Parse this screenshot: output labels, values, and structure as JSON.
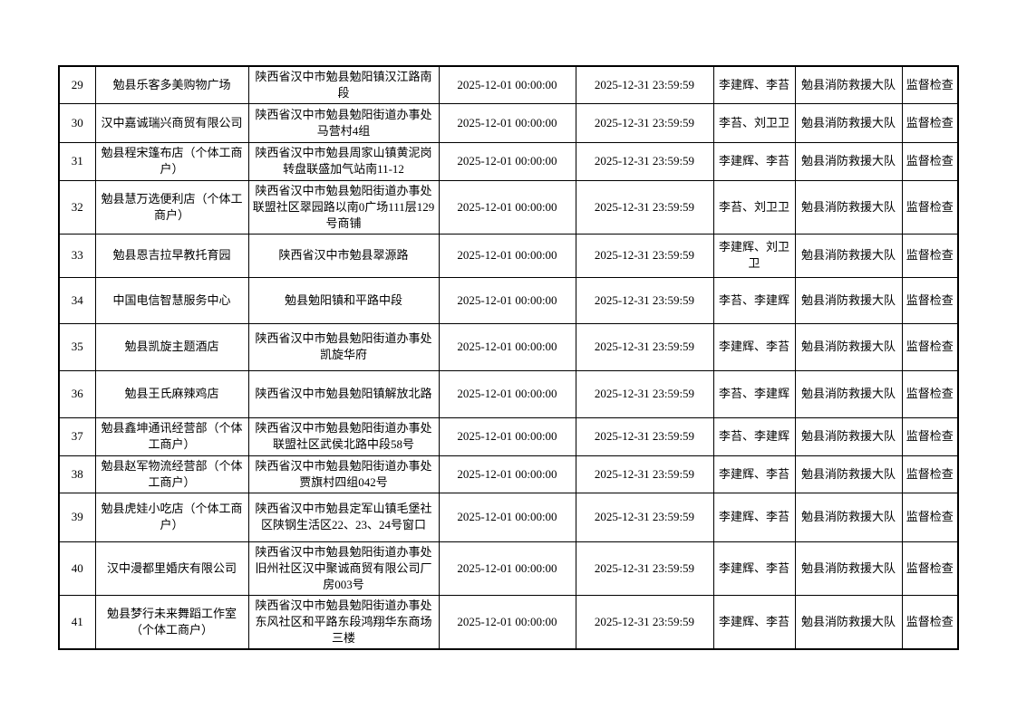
{
  "page": {
    "background_color": "#ffffff",
    "text_color": "#000000",
    "border_color": "#000000"
  },
  "table": {
    "rows": [
      {
        "no": "29",
        "name": "勉县乐客多美购物广场",
        "address": "陕西省汉中市勉县勉阳镇汉江路南段",
        "start": "2025-12-01 00:00:00",
        "end": "2025-12-31 23:59:59",
        "inspectors": "李建辉、李苔",
        "agency": "勉县消防救援大队",
        "type": "监督检查"
      },
      {
        "no": "30",
        "name": "汉中嘉诚瑞兴商贸有限公司",
        "address": "陕西省汉中市勉县勉阳街道办事处马营村4组",
        "start": "2025-12-01 00:00:00",
        "end": "2025-12-31 23:59:59",
        "inspectors": "李苔、刘卫卫",
        "agency": "勉县消防救援大队",
        "type": "监督检查"
      },
      {
        "no": "31",
        "name": "勉县程宋篷布店（个体工商户）",
        "address": "陕西省汉中市勉县周家山镇黄泥岗转盘联盛加气站南11-12",
        "start": "2025-12-01 00:00:00",
        "end": "2025-12-31 23:59:59",
        "inspectors": "李建辉、李苔",
        "agency": "勉县消防救援大队",
        "type": "监督检查"
      },
      {
        "no": "32",
        "name": "勉县慧万选便利店（个体工商户）",
        "address": "陕西省汉中市勉县勉阳街道办事处联盟社区翠园路以南0广场111层129号商铺",
        "start": "2025-12-01 00:00:00",
        "end": "2025-12-31 23:59:59",
        "inspectors": "李苔、刘卫卫",
        "agency": "勉县消防救援大队",
        "type": "监督检查"
      },
      {
        "no": "33",
        "name": "勉县恩吉拉早教托育园",
        "address": "陕西省汉中市勉县翠源路",
        "start": "2025-12-01 00:00:00",
        "end": "2025-12-31 23:59:59",
        "inspectors": "李建辉、刘卫卫",
        "agency": "勉县消防救援大队",
        "type": "监督检查"
      },
      {
        "no": "34",
        "name": "中国电信智慧服务中心",
        "address": "勉县勉阳镇和平路中段",
        "start": "2025-12-01 00:00:00",
        "end": "2025-12-31 23:59:59",
        "inspectors": "李苔、李建辉",
        "agency": "勉县消防救援大队",
        "type": "监督检查"
      },
      {
        "no": "35",
        "name": "勉县凯旋主题酒店",
        "address": "陕西省汉中市勉县勉阳街道办事处凯旋华府",
        "start": "2025-12-01 00:00:00",
        "end": "2025-12-31 23:59:59",
        "inspectors": "李建辉、李苔",
        "agency": "勉县消防救援大队",
        "type": "监督检查"
      },
      {
        "no": "36",
        "name": "勉县王氏麻辣鸡店",
        "address": "陕西省汉中市勉县勉阳镇解放北路",
        "start": "2025-12-01 00:00:00",
        "end": "2025-12-31 23:59:59",
        "inspectors": "李苔、李建辉",
        "agency": "勉县消防救援大队",
        "type": "监督检查"
      },
      {
        "no": "37",
        "name": "勉县鑫坤通讯经营部（个体工商户）",
        "address": "陕西省汉中市勉县勉阳街道办事处联盟社区武侯北路中段58号",
        "start": "2025-12-01 00:00:00",
        "end": "2025-12-31 23:59:59",
        "inspectors": "李苔、李建辉",
        "agency": "勉县消防救援大队",
        "type": "监督检查"
      },
      {
        "no": "38",
        "name": "勉县赵军物流经营部（个体工商户）",
        "address": "陕西省汉中市勉县勉阳街道办事处贾旗村四组042号",
        "start": "2025-12-01 00:00:00",
        "end": "2025-12-31 23:59:59",
        "inspectors": "李建辉、李苔",
        "agency": "勉县消防救援大队",
        "type": "监督检查"
      },
      {
        "no": "39",
        "name": "勉县虎娃小吃店（个体工商户）",
        "address": "陕西省汉中市勉县定军山镇毛堡社区陕钢生活区22、23、24号窗口",
        "start": "2025-12-01 00:00:00",
        "end": "2025-12-31 23:59:59",
        "inspectors": "李建辉、李苔",
        "agency": "勉县消防救援大队",
        "type": "监督检查"
      },
      {
        "no": "40",
        "name": "汉中漫都里婚庆有限公司",
        "address": "陕西省汉中市勉县勉阳街道办事处旧州社区汉中聚诚商贸有限公司厂房003号",
        "start": "2025-12-01 00:00:00",
        "end": "2025-12-31 23:59:59",
        "inspectors": "李建辉、李苔",
        "agency": "勉县消防救援大队",
        "type": "监督检查"
      },
      {
        "no": "41",
        "name": "勉县梦行未来舞蹈工作室（个体工商户）",
        "address": "陕西省汉中市勉县勉阳街道办事处东风社区和平路东段鸿翔华东商场三楼",
        "start": "2025-12-01 00:00:00",
        "end": "2025-12-31 23:59:59",
        "inspectors": "李建辉、李苔",
        "agency": "勉县消防救援大队",
        "type": "监督检查"
      }
    ]
  }
}
